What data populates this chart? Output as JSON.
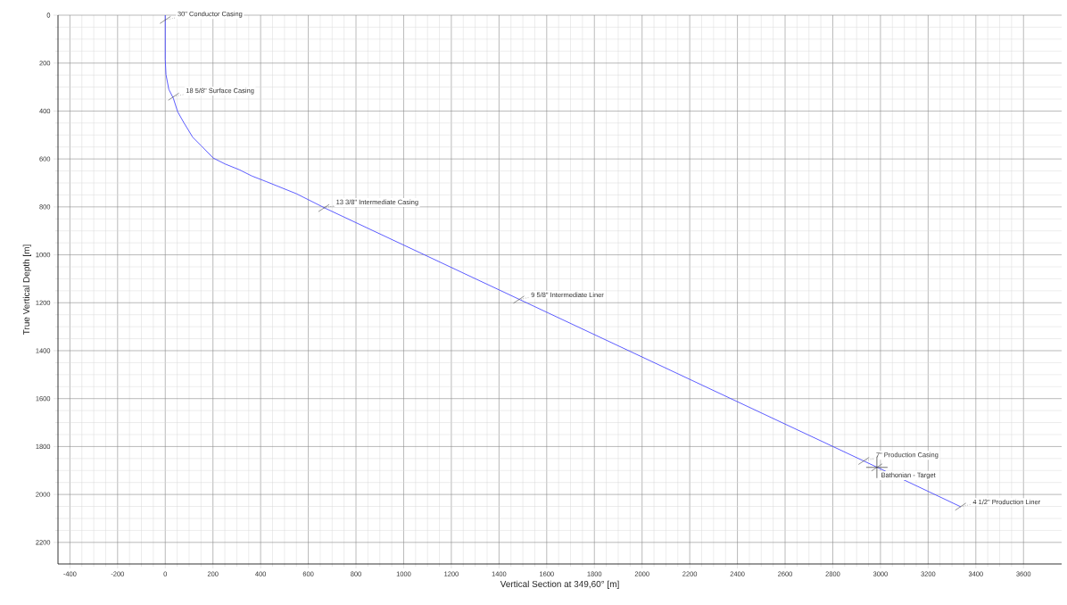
{
  "chart_data": {
    "type": "line",
    "xlabel": "Vertical Section at 349,60° [m]",
    "ylabel": "True Vertical Depth [m]",
    "series": [
      {
        "color": "#4b4bff",
        "x": [
          0,
          0,
          3,
          15,
          34,
          52,
          77,
          115,
          152,
          201,
          251,
          313,
          363,
          425,
          550,
          674,
          1483,
          2985,
          3336
        ],
        "values": [
          0,
          185,
          248,
          310,
          347,
          403,
          447,
          509,
          546,
          596,
          621,
          646,
          671,
          695,
          745,
          807,
          1185,
          1886,
          2051
        ]
      }
    ],
    "xlim": [
      -450,
      3760
    ],
    "ylim": [
      2290,
      0
    ],
    "xticks": [
      -400,
      -200,
      0,
      200,
      400,
      600,
      800,
      1000,
      1200,
      1400,
      1600,
      1800,
      2000,
      2200,
      2400,
      2600,
      2800,
      3000,
      3200,
      3400,
      3600
    ],
    "yticks": [
      0,
      200,
      400,
      600,
      800,
      1000,
      1200,
      1400,
      1600,
      1800,
      2000,
      2200
    ],
    "grid": true,
    "annotations": [
      {
        "text": "30\" Conductor Casing",
        "x": 0,
        "y": 20
      },
      {
        "text": "18 5/8\" Surface Casing",
        "x": 35,
        "y": 340
      },
      {
        "text": "13 3/8\" Intermediate Casing",
        "x": 665,
        "y": 805
      },
      {
        "text": "9 5/8\" Intermediate Liner",
        "x": 1483,
        "y": 1187
      },
      {
        "text": "7\" Production Casing",
        "x": 2930,
        "y": 1860
      },
      {
        "text": "Bathonian - Target",
        "x": 2985,
        "y": 1887
      },
      {
        "text": "4 1/2\" Production Liner",
        "x": 3336,
        "y": 2051
      }
    ]
  }
}
